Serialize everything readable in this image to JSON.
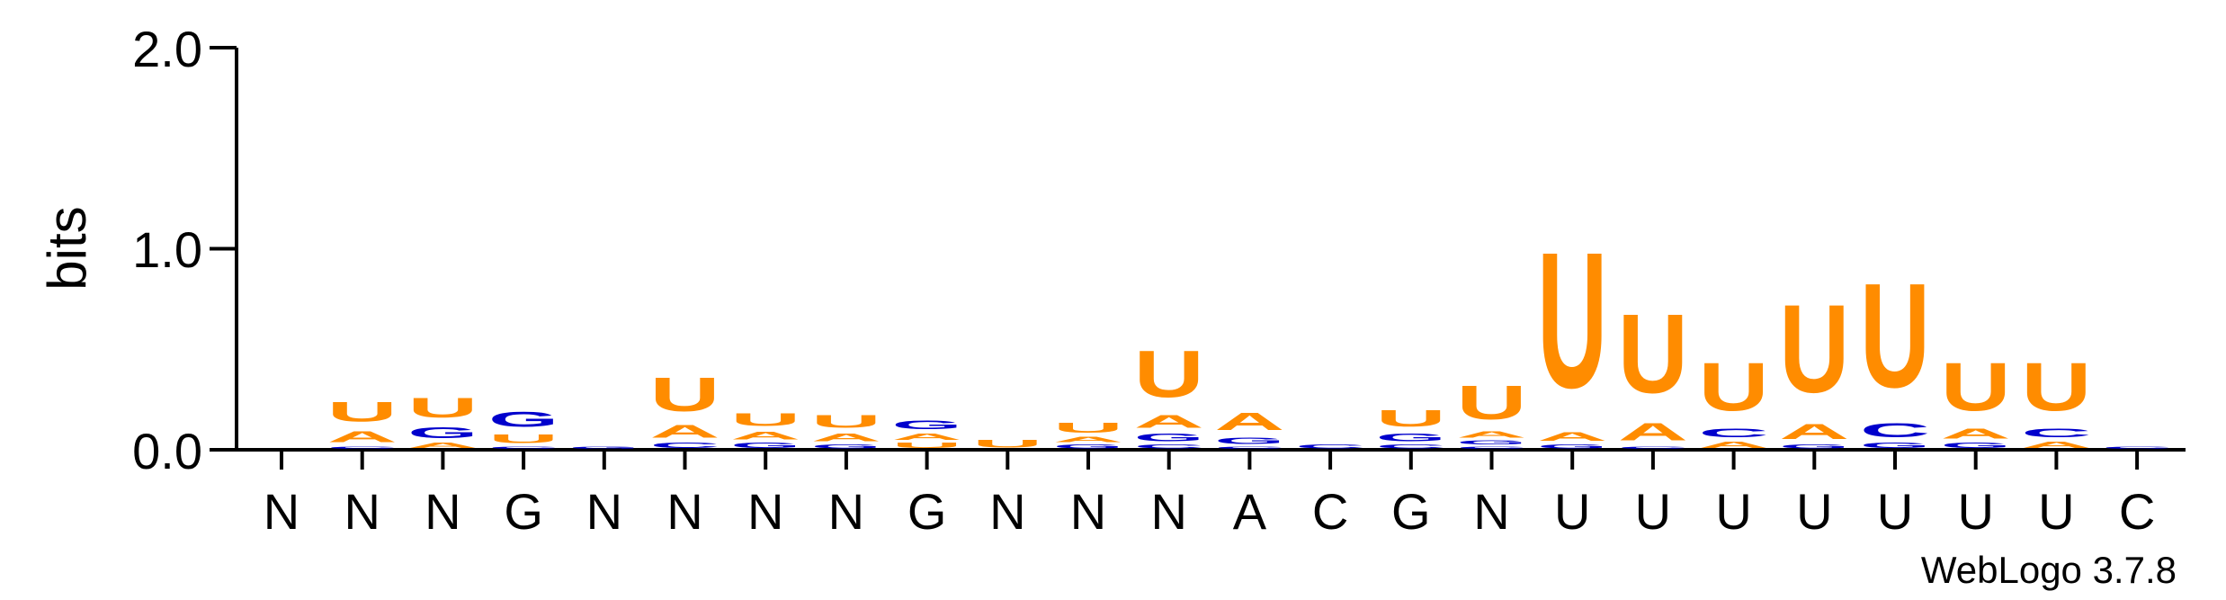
{
  "chart_data": {
    "type": "sequence-logo",
    "ylabel": "bits",
    "ylim": [
      0,
      2.0
    ],
    "yticks": [
      "0.0",
      "1.0",
      "2.0"
    ],
    "footer": "WebLogo 3.7.8",
    "colors": {
      "U": "#ff8c00",
      "A": "#ff8c00",
      "G": "#0000cc",
      "C": "#0000cc"
    },
    "positions": [
      {
        "label": "N",
        "stack": []
      },
      {
        "label": "N",
        "stack": [
          {
            "letter": "C",
            "h": 0.02
          },
          {
            "letter": "A",
            "h": 0.09
          },
          {
            "letter": "U",
            "h": 0.16
          }
        ]
      },
      {
        "label": "N",
        "stack": [
          {
            "letter": "A",
            "h": 0.04
          },
          {
            "letter": "G",
            "h": 0.09
          },
          {
            "letter": "U",
            "h": 0.16
          }
        ]
      },
      {
        "label": "G",
        "stack": [
          {
            "letter": "C",
            "h": 0.02
          },
          {
            "letter": "U",
            "h": 0.07
          },
          {
            "letter": "G",
            "h": 0.12
          }
        ]
      },
      {
        "label": "N",
        "stack": [
          {
            "letter": "G",
            "h": 0.02
          }
        ]
      },
      {
        "label": "N",
        "stack": [
          {
            "letter": "C",
            "h": 0.04
          },
          {
            "letter": "A",
            "h": 0.1
          },
          {
            "letter": "U",
            "h": 0.27
          }
        ]
      },
      {
        "label": "N",
        "stack": [
          {
            "letter": "G",
            "h": 0.04
          },
          {
            "letter": "A",
            "h": 0.06
          },
          {
            "letter": "U",
            "h": 0.1
          }
        ]
      },
      {
        "label": "N",
        "stack": [
          {
            "letter": "G",
            "h": 0.03
          },
          {
            "letter": "A",
            "h": 0.06
          },
          {
            "letter": "U",
            "h": 0.1
          }
        ]
      },
      {
        "label": "G",
        "stack": [
          {
            "letter": "U",
            "h": 0.04
          },
          {
            "letter": "A",
            "h": 0.05
          },
          {
            "letter": "G",
            "h": 0.07
          }
        ]
      },
      {
        "label": "N",
        "stack": [
          {
            "letter": "U",
            "h": 0.06
          }
        ]
      },
      {
        "label": "N",
        "stack": [
          {
            "letter": "G",
            "h": 0.03
          },
          {
            "letter": "A",
            "h": 0.04
          },
          {
            "letter": "U",
            "h": 0.08
          }
        ]
      },
      {
        "label": "N",
        "stack": [
          {
            "letter": "C",
            "h": 0.03
          },
          {
            "letter": "G",
            "h": 0.06
          },
          {
            "letter": "A",
            "h": 0.1
          },
          {
            "letter": "U",
            "h": 0.37
          }
        ]
      },
      {
        "label": "A",
        "stack": [
          {
            "letter": "C",
            "h": 0.02
          },
          {
            "letter": "G",
            "h": 0.05
          },
          {
            "letter": "A",
            "h": 0.14
          }
        ]
      },
      {
        "label": "C",
        "stack": [
          {
            "letter": "C",
            "h": 0.03
          }
        ]
      },
      {
        "label": "G",
        "stack": [
          {
            "letter": "C",
            "h": 0.03
          },
          {
            "letter": "G",
            "h": 0.06
          },
          {
            "letter": "U",
            "h": 0.13
          }
        ]
      },
      {
        "label": "N",
        "stack": [
          {
            "letter": "C",
            "h": 0.02
          },
          {
            "letter": "G",
            "h": 0.03
          },
          {
            "letter": "A",
            "h": 0.05
          },
          {
            "letter": "U",
            "h": 0.27
          }
        ]
      },
      {
        "label": "U",
        "stack": [
          {
            "letter": "G",
            "h": 0.03
          },
          {
            "letter": "A",
            "h": 0.07
          },
          {
            "letter": "U",
            "h": 1.08
          }
        ]
      },
      {
        "label": "U",
        "stack": [
          {
            "letter": "C",
            "h": 0.02
          },
          {
            "letter": "A",
            "h": 0.14
          },
          {
            "letter": "U",
            "h": 0.63
          }
        ]
      },
      {
        "label": "U",
        "stack": [
          {
            "letter": "A",
            "h": 0.05
          },
          {
            "letter": "C",
            "h": 0.07
          },
          {
            "letter": "U",
            "h": 0.38
          }
        ]
      },
      {
        "label": "U",
        "stack": [
          {
            "letter": "G",
            "h": 0.03
          },
          {
            "letter": "A",
            "h": 0.12
          },
          {
            "letter": "U",
            "h": 0.7
          }
        ]
      },
      {
        "label": "U",
        "stack": [
          {
            "letter": "G",
            "h": 0.04
          },
          {
            "letter": "C",
            "h": 0.11
          },
          {
            "letter": "U",
            "h": 0.83
          }
        ]
      },
      {
        "label": "U",
        "stack": [
          {
            "letter": "G",
            "h": 0.04
          },
          {
            "letter": "A",
            "h": 0.08
          },
          {
            "letter": "U",
            "h": 0.38
          }
        ]
      },
      {
        "label": "U",
        "stack": [
          {
            "letter": "A",
            "h": 0.05
          },
          {
            "letter": "C",
            "h": 0.07
          },
          {
            "letter": "U",
            "h": 0.38
          }
        ]
      },
      {
        "label": "C",
        "stack": [
          {
            "letter": "C",
            "h": 0.02
          }
        ]
      }
    ]
  }
}
